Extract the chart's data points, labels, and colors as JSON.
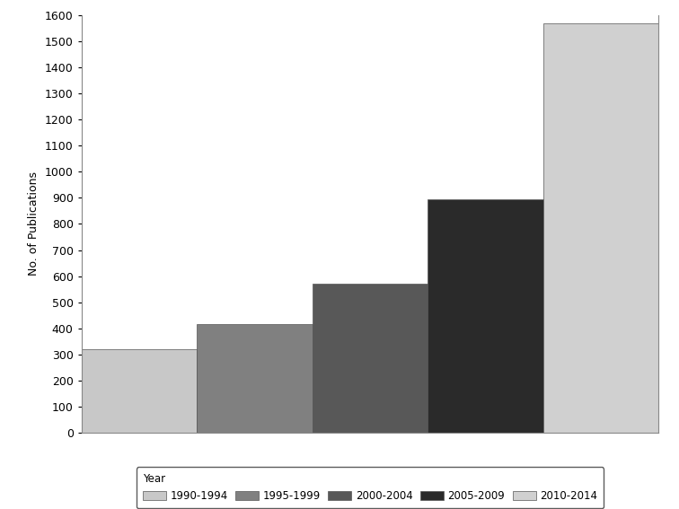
{
  "categories": [
    "1990-1994",
    "1995-1999",
    "2000-2004",
    "2005-2009",
    "2010-2014"
  ],
  "values": [
    320,
    415,
    570,
    895,
    1570
  ],
  "bar_colors": [
    "#c8c8c8",
    "#808080",
    "#585858",
    "#2a2a2a",
    "#d0d0d0"
  ],
  "ylabel": "No. of Publications",
  "ylim": [
    0,
    1600
  ],
  "yticks": [
    0,
    100,
    200,
    300,
    400,
    500,
    600,
    700,
    800,
    900,
    1000,
    1100,
    1200,
    1300,
    1400,
    1500,
    1600
  ],
  "legend_label": "Year",
  "background_color": "#ffffff",
  "edge_color": "#555555"
}
